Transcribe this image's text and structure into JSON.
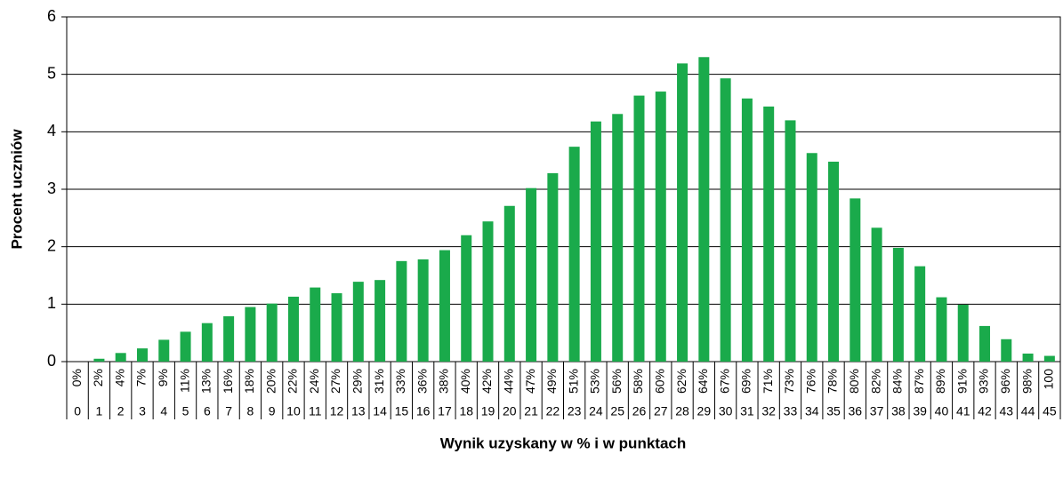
{
  "chart_data": {
    "type": "bar",
    "x_label": "Wynik uzyskany w % i w punktach",
    "y_label": "Procent uczniów",
    "categories": [
      "0",
      "1",
      "2",
      "3",
      "4",
      "5",
      "6",
      "7",
      "8",
      "9",
      "10",
      "11",
      "12",
      "13",
      "14",
      "15",
      "16",
      "17",
      "18",
      "19",
      "20",
      "21",
      "22",
      "23",
      "24",
      "25",
      "26",
      "27",
      "28",
      "29",
      "30",
      "31",
      "32",
      "33",
      "34",
      "35",
      "36",
      "37",
      "38",
      "39",
      "40",
      "41",
      "42",
      "43",
      "44",
      "45"
    ],
    "percent_labels": [
      "0%",
      "2%",
      "4%",
      "7%",
      "9%",
      "11%",
      "13%",
      "16%",
      "18%",
      "20%",
      "22%",
      "24%",
      "27%",
      "29%",
      "31%",
      "33%",
      "36%",
      "38%",
      "40%",
      "42%",
      "44%",
      "47%",
      "49%",
      "51%",
      "53%",
      "56%",
      "58%",
      "60%",
      "62%",
      "64%",
      "67%",
      "69%",
      "71%",
      "73%",
      "76%",
      "78%",
      "80%",
      "82%",
      "84%",
      "87%",
      "89%",
      "91%",
      "93%",
      "96%",
      "98%",
      "100"
    ],
    "values": [
      0,
      0.05,
      0.15,
      0.23,
      0.38,
      0.52,
      0.67,
      0.79,
      0.95,
      1.01,
      1.13,
      1.29,
      1.19,
      1.39,
      1.42,
      1.75,
      1.78,
      1.94,
      2.2,
      2.44,
      2.71,
      3.02,
      3.28,
      3.74,
      4.18,
      4.31,
      4.63,
      4.7,
      5.19,
      5.3,
      4.93,
      4.58,
      4.44,
      4.2,
      3.63,
      3.48,
      2.84,
      2.33,
      1.98,
      1.66,
      1.12,
      0.99,
      0.62,
      0.39,
      0.14,
      0.1
    ],
    "color": "#1aaa4b",
    "ylim": [
      0,
      6
    ],
    "yticks": [
      0,
      1,
      2,
      3,
      4,
      5,
      6
    ],
    "grid": true
  }
}
